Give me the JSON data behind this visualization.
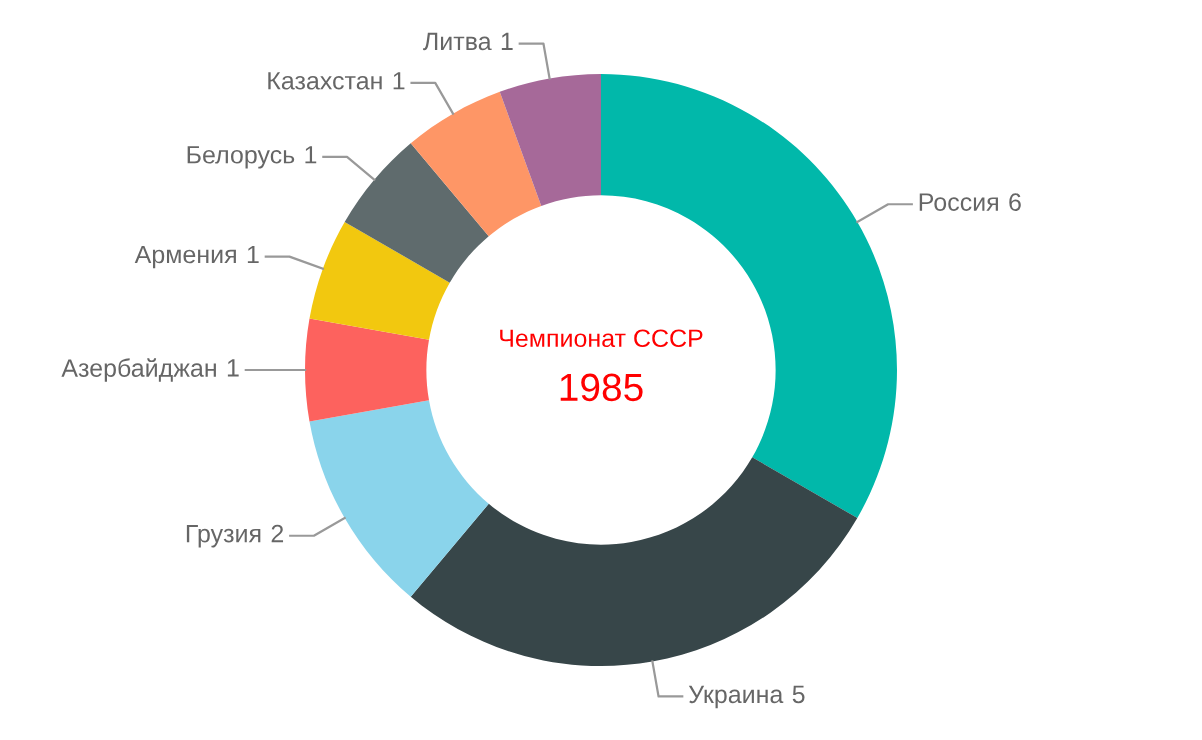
{
  "chart_data": {
    "type": "donut",
    "title": "Чемпионат СССР",
    "subtitle": "1985",
    "categories": [
      "Россия",
      "Украина",
      "Грузия",
      "Азербайджан",
      "Армения",
      "Белорусь",
      "Казахстан",
      "Литва"
    ],
    "values": [
      6,
      5,
      2,
      1,
      1,
      1,
      1,
      1
    ],
    "colors": [
      "#01b8aa",
      "#374649",
      "#8ad4eb",
      "#fd625e",
      "#f2c80f",
      "#5f6b6d",
      "#fe9666",
      "#a66999"
    ],
    "data_labels": true,
    "legend": false
  }
}
